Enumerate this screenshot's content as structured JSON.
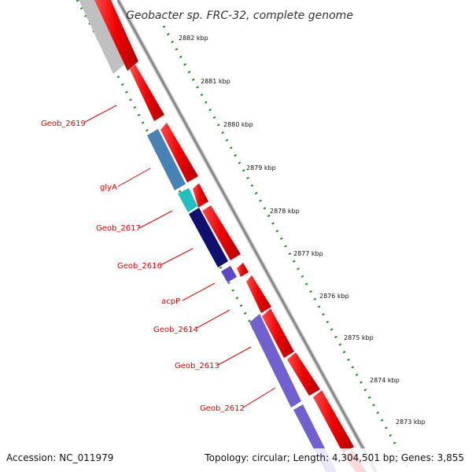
{
  "title": "Geobacter sp. FRC-32, complete genome",
  "gene_labels": [
    {
      "id": "geob-2619",
      "text": "Geob_2619"
    },
    {
      "id": "glya",
      "text": "glyA"
    },
    {
      "id": "geob-2617",
      "text": "Geob_2617"
    },
    {
      "id": "geob-2616",
      "text": "Geob_2616"
    },
    {
      "id": "acpp",
      "text": "acpP"
    },
    {
      "id": "geob-2614",
      "text": "Geob_2614"
    },
    {
      "id": "geob-2613",
      "text": "Geob_2613"
    },
    {
      "id": "geob-2612",
      "text": "Geob_2612"
    }
  ],
  "kbp_ticks": [
    "2882 kbp",
    "2881 kbp",
    "2880 kbp",
    "2879 kbp",
    "2878 kbp",
    "2877 kbp",
    "2876 kbp",
    "2875 kbp",
    "2874 kbp",
    "2873 kbp"
  ],
  "footer": {
    "accession": "Accession: NC_011979",
    "topology": "Topology: circular; Length: 4,304,501 bp; Genes: 3,855"
  },
  "colors": {
    "forward_cds": "#ee0000",
    "backbone": "#888888",
    "gene_label": "#e00000",
    "tick_green": "#1a8a1a",
    "steelblue": "#4682b4",
    "cyan": "#20c0c0",
    "navy": "#101070",
    "slateblue": "#7060d0",
    "gray_cds": "#c0c0c0"
  }
}
